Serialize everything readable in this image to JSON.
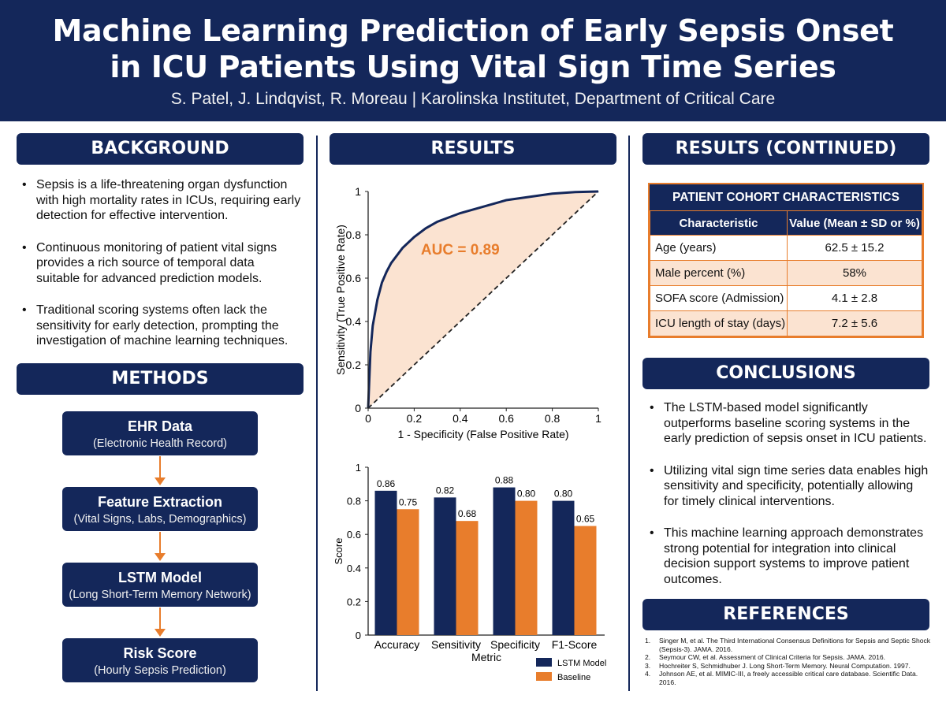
{
  "header": {
    "title_line1": "Machine Learning Prediction of Early Sepsis Onset",
    "title_line2": "in ICU Patients Using Vital Sign Time Series",
    "authors": "S. Patel, J. Lindqvist, R. Moreau | Karolinska Institutet, Department of Critical Care"
  },
  "colors": {
    "navy": "#14275a",
    "orange": "#e87d2c",
    "peach": "#fbe3d1"
  },
  "background": {
    "heading": "BACKGROUND",
    "bullets": [
      "Sepsis is a life-threatening organ dysfunction with high mortality rates in ICUs, requiring early detection for effective intervention.",
      "Continuous monitoring of patient vital signs provides a rich source of temporal data suitable for advanced prediction models.",
      "Traditional scoring systems often lack the sensitivity for early detection, prompting the investigation of machine learning techniques."
    ]
  },
  "methods": {
    "heading": "METHODS",
    "steps": [
      {
        "title": "EHR Data",
        "subtitle": "(Electronic Health Record)"
      },
      {
        "title": "Feature Extraction",
        "subtitle": "(Vital Signs, Labs, Demographics)"
      },
      {
        "title": "LSTM Model",
        "subtitle": "(Long Short-Term Memory Network)"
      },
      {
        "title": "Risk Score",
        "subtitle": "(Hourly Sepsis Prediction)"
      }
    ]
  },
  "results": {
    "heading": "RESULTS"
  },
  "chart_data": [
    {
      "type": "line",
      "title": "",
      "xlabel": "1 - Specificity (False Positive Rate)",
      "ylabel": "Sensitivity (True Positive Rate)",
      "xlim": [
        0,
        1
      ],
      "ylim": [
        0,
        1
      ],
      "xticks": [
        "0",
        "0.2",
        "0.4",
        "0.6",
        "0.8",
        "1"
      ],
      "yticks": [
        "0",
        "0.2",
        "0.4",
        "0.6",
        "0.8",
        "1"
      ],
      "annotation": "AUC = 0.89",
      "series": [
        {
          "name": "",
          "x": [
            0,
            0.01,
            0.02,
            0.04,
            0.06,
            0.08,
            0.1,
            0.15,
            0.2,
            0.25,
            0.3,
            0.4,
            0.5,
            0.6,
            0.7,
            0.8,
            0.9,
            1.0
          ],
          "y": [
            0,
            0.26,
            0.38,
            0.5,
            0.58,
            0.63,
            0.67,
            0.74,
            0.79,
            0.83,
            0.86,
            0.9,
            0.93,
            0.96,
            0.975,
            0.99,
            0.997,
            1.0
          ]
        },
        {
          "name": "",
          "x": [
            0,
            1
          ],
          "y": [
            0,
            1
          ]
        }
      ],
      "grid": false
    },
    {
      "type": "bar",
      "categories": [
        "Accuracy",
        "Sensitivity",
        "Specificity",
        "F1-Score"
      ],
      "series": [
        {
          "name": "LSTM Model",
          "values": [
            0.86,
            0.82,
            0.88,
            0.8
          ],
          "labels": [
            "0.86",
            "0.82",
            "0.88",
            "0.80"
          ]
        },
        {
          "name": "Baseline",
          "values": [
            0.75,
            0.68,
            0.8,
            0.65
          ],
          "labels": [
            "0.75",
            "0.68",
            "0.80",
            "0.65"
          ]
        }
      ],
      "title": "",
      "xlabel": "Metric",
      "ylabel": "Score",
      "ylim": [
        0,
        1
      ],
      "yticks": [
        "0",
        "0.2",
        "0.4",
        "0.6",
        "0.8",
        "1"
      ],
      "legend_position": "bottom-right",
      "grid": false
    }
  ],
  "results_continued": {
    "heading": "RESULTS (CONTINUED)",
    "table": {
      "caption": "PATIENT COHORT CHARACTERISTICS",
      "columns": [
        "Characteristic",
        "Value (Mean ± SD or %)"
      ],
      "rows": [
        [
          "Age (years)",
          "62.5 ± 15.2"
        ],
        [
          "Male percent (%)",
          "58%"
        ],
        [
          "SOFA score (Admission)",
          "4.1 ± 2.8"
        ],
        [
          "ICU length of stay (days)",
          "7.2 ± 5.6"
        ]
      ]
    }
  },
  "conclusions": {
    "heading": "CONCLUSIONS",
    "bullets": [
      "The LSTM-based model significantly outperforms baseline scoring systems in the early prediction of sepsis onset in ICU patients.",
      "Utilizing vital sign time series data enables high sensitivity and specificity, potentially allowing for timely clinical interventions.",
      "This machine learning approach demonstrates strong potential for integration into clinical decision support systems to improve patient outcomes."
    ]
  },
  "references": {
    "heading": "REFERENCES",
    "items": [
      {
        "num": "1.",
        "text": "Singer M, et al. The Third International Consensus Definitions for Sepsis and Septic Shock (Sepsis-3). JAMA. 2016."
      },
      {
        "num": "2.",
        "text": "Seymour CW, et al. Assessment of Clinical Criteria for Sepsis. JAMA. 2016."
      },
      {
        "num": "3.",
        "text": "Hochreiter S, Schmidhuber J. Long Short-Term Memory. Neural Computation. 1997."
      },
      {
        "num": "4.",
        "text": "Johnson AE, et al. MIMIC-III, a freely accessible critical care database. Scientific Data. 2016."
      }
    ]
  }
}
